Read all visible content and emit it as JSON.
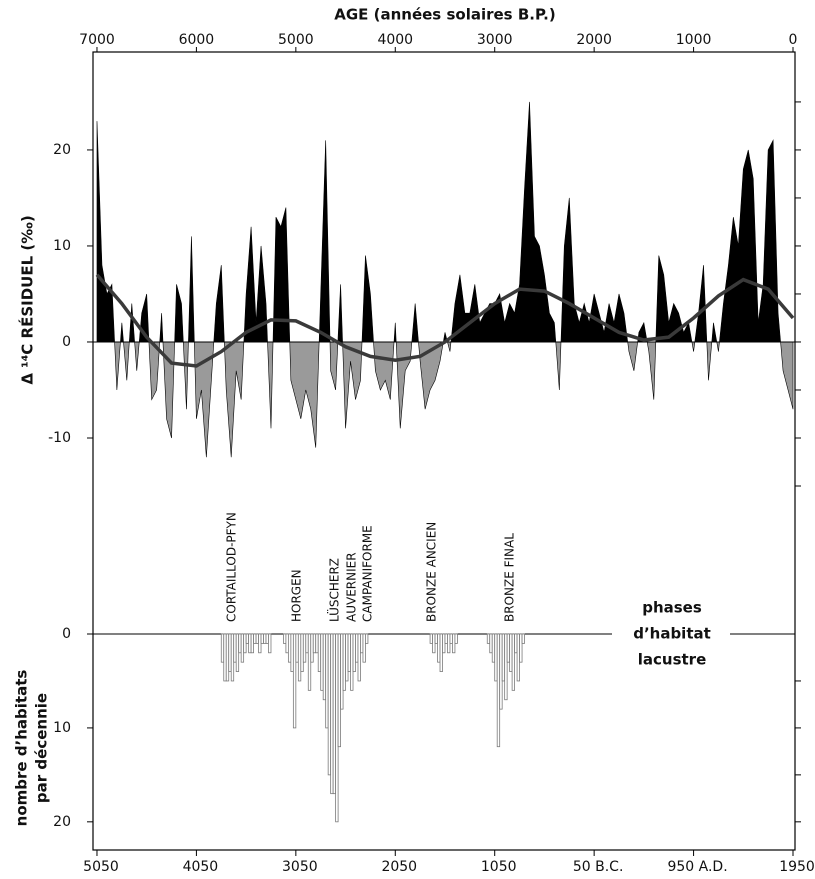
{
  "chart_data": [
    {
      "type": "area",
      "title": "AGE (années solaires B.P.)",
      "ylabel": "Δ ¹⁴C RÉSIDUEL (‰)",
      "xlim": [
        7040,
        -20
      ],
      "xticks": [
        7000,
        6000,
        5000,
        4000,
        3000,
        2000,
        1000,
        0
      ],
      "ylim": [
        -15,
        30.2
      ],
      "yticks": [
        -10,
        0,
        10,
        20
      ],
      "minor_yticks": [
        -15,
        -10,
        -5,
        0,
        5,
        10,
        15,
        20,
        25
      ],
      "series": [
        {
          "pos_color": "#000000",
          "neg_color": "#9a9a9a",
          "x": [
            7000,
            6950,
            6900,
            6850,
            6800,
            6750,
            6700,
            6650,
            6600,
            6550,
            6500,
            6450,
            6400,
            6350,
            6300,
            6250,
            6200,
            6150,
            6100,
            6050,
            6000,
            5950,
            5900,
            5850,
            5800,
            5750,
            5700,
            5650,
            5600,
            5550,
            5500,
            5450,
            5400,
            5350,
            5300,
            5250,
            5200,
            5150,
            5100,
            5050,
            5000,
            4950,
            4900,
            4850,
            4800,
            4750,
            4700,
            4650,
            4600,
            4550,
            4500,
            4450,
            4400,
            4350,
            4300,
            4250,
            4200,
            4150,
            4100,
            4050,
            4000,
            3950,
            3900,
            3850,
            3800,
            3750,
            3700,
            3650,
            3600,
            3550,
            3500,
            3450,
            3400,
            3350,
            3300,
            3250,
            3200,
            3150,
            3100,
            3050,
            3000,
            2950,
            2900,
            2850,
            2800,
            2750,
            2700,
            2650,
            2600,
            2550,
            2500,
            2450,
            2400,
            2350,
            2300,
            2250,
            2200,
            2150,
            2100,
            2050,
            2000,
            1950,
            1900,
            1850,
            1800,
            1750,
            1700,
            1650,
            1600,
            1550,
            1500,
            1450,
            1400,
            1350,
            1300,
            1250,
            1200,
            1150,
            1100,
            1050,
            1000,
            950,
            900,
            850,
            800,
            750,
            700,
            650,
            600,
            550,
            500,
            450,
            400,
            350,
            300,
            250,
            200,
            150,
            100,
            50,
            0
          ],
          "values": [
            23,
            8,
            5,
            6,
            -5,
            2,
            -4,
            4,
            -3,
            3,
            5,
            -6,
            -5,
            3,
            -8,
            -10,
            6,
            4,
            -7,
            11,
            -8,
            -5,
            -12,
            -4,
            4,
            8,
            -5,
            -12,
            -3,
            -6,
            5,
            12,
            2,
            10,
            4,
            -9,
            13,
            12,
            14,
            -4,
            -6,
            -8,
            -5,
            -7,
            -11,
            5,
            21,
            -3,
            -5,
            6,
            -9,
            -2,
            -6,
            -4,
            9,
            5,
            -3,
            -5,
            -4,
            -6,
            2,
            -9,
            -3,
            -2,
            4,
            -2,
            -7,
            -5,
            -4,
            -2,
            1,
            -1,
            4,
            7,
            3,
            3,
            6,
            2,
            3,
            4,
            4,
            5,
            2,
            4,
            3,
            6,
            16,
            25,
            11,
            10,
            7,
            3,
            2,
            -5,
            10,
            15,
            4,
            2,
            4,
            2,
            5,
            3,
            1,
            4,
            2,
            5,
            3,
            -1,
            -3,
            1,
            2,
            -1,
            -6,
            9,
            7,
            2,
            4,
            3,
            1,
            2,
            -1,
            3,
            8,
            -4,
            2,
            -1,
            4,
            8,
            13,
            10,
            18,
            20,
            17,
            2,
            6,
            20,
            21,
            3,
            -3,
            -5,
            -7
          ]
        },
        {
          "color": "#3a3a3a",
          "x": [
            7000,
            6750,
            6500,
            6250,
            6000,
            5750,
            5500,
            5250,
            5000,
            4750,
            4500,
            4250,
            4000,
            3750,
            3500,
            3250,
            3000,
            2750,
            2500,
            2250,
            2000,
            1750,
            1500,
            1250,
            1000,
            750,
            500,
            250,
            0
          ],
          "values": [
            7,
            4,
            0.5,
            -2.2,
            -2.5,
            -1,
            1,
            2.3,
            2.2,
            1,
            -0.5,
            -1.5,
            -1.9,
            -1.5,
            0,
            2,
            4,
            5.5,
            5.3,
            4,
            2.5,
            1,
            0.2,
            0.5,
            2.5,
            4.8,
            6.5,
            5.5,
            2.5
          ]
        }
      ]
    },
    {
      "type": "bar",
      "ylabel": [
        "nombre d’habitats",
        "par décennie"
      ],
      "xlim": [
        -5090,
        1970
      ],
      "xticks": [
        {
          "value": -5050,
          "label": "5050"
        },
        {
          "value": -4050,
          "label": "4050"
        },
        {
          "value": -3050,
          "label": "3050"
        },
        {
          "value": -2050,
          "label": "2050"
        },
        {
          "value": -1050,
          "label": "1050"
        },
        {
          "value": -50,
          "label": "50 B.C."
        },
        {
          "value": 950,
          "label": "950 A.D."
        },
        {
          "value": 1950,
          "label": "1950"
        }
      ],
      "ylim": [
        0,
        23
      ],
      "yticks": [
        0,
        10,
        20
      ],
      "minor_yticks": [
        5,
        10,
        15,
        20
      ],
      "inverted": true,
      "annotations": [
        "CORTAILLOD-PFYN",
        "HORGEN",
        "LÜSCHERZ",
        "AUVERNIER",
        "CAMPANIFORME",
        "BRONZE ANCIEN",
        "BRONZE FINAL"
      ],
      "legend_text": [
        "phases",
        "d’habitat",
        "lacustre"
      ],
      "color": "#ffffff",
      "edge_color": "#7a7a7a",
      "x": [
        -3800,
        -3775,
        -3750,
        -3725,
        -3700,
        -3675,
        -3650,
        -3625,
        -3600,
        -3575,
        -3550,
        -3525,
        -3500,
        -3475,
        -3450,
        -3425,
        -3400,
        -3375,
        -3350,
        -3325,
        -3175,
        -3150,
        -3125,
        -3100,
        -3075,
        -3050,
        -3025,
        -3000,
        -2975,
        -2950,
        -2925,
        -2900,
        -2875,
        -2850,
        -2825,
        -2800,
        -2775,
        -2750,
        -2725,
        -2700,
        -2675,
        -2650,
        -2625,
        -2600,
        -2575,
        -2550,
        -2525,
        -2500,
        -2475,
        -2450,
        -2425,
        -2400,
        -2375,
        -2350,
        -1700,
        -1675,
        -1650,
        -1625,
        -1600,
        -1575,
        -1550,
        -1525,
        -1500,
        -1475,
        -1450,
        -1125,
        -1100,
        -1075,
        -1050,
        -1025,
        -1000,
        -975,
        -950,
        -925,
        -900,
        -875,
        -850,
        -825,
        -800,
        -775
      ],
      "values": [
        3,
        5,
        5,
        4,
        5,
        3,
        4,
        2,
        3,
        2,
        1,
        2,
        2,
        1,
        1,
        2,
        1,
        1,
        1,
        2,
        1,
        2,
        3,
        4,
        10,
        3,
        5,
        4,
        3,
        2,
        6,
        3,
        2,
        2,
        4,
        6,
        7,
        10,
        15,
        17,
        17,
        20,
        12,
        8,
        6,
        5,
        4,
        6,
        4,
        3,
        5,
        2,
        3,
        1,
        1,
        2,
        1,
        3,
        4,
        2,
        1,
        2,
        1,
        2,
        1,
        1,
        2,
        3,
        5,
        12,
        8,
        5,
        7,
        3,
        4,
        6,
        2,
        5,
        3,
        1
      ]
    }
  ]
}
